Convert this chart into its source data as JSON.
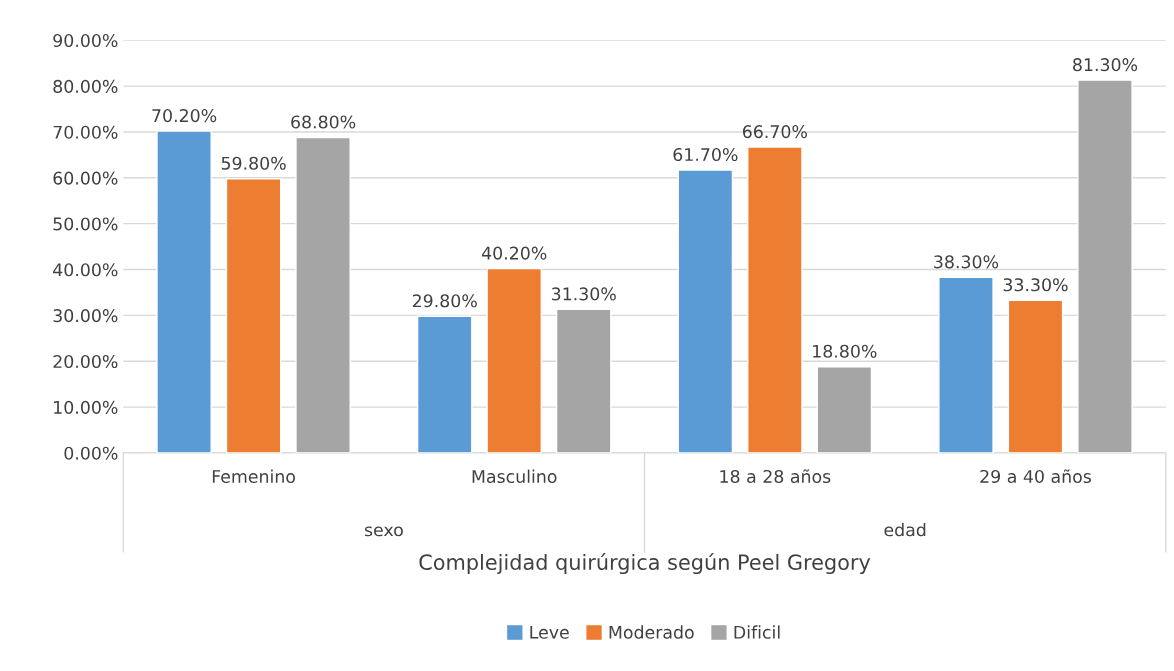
{
  "chart_data": {
    "type": "bar",
    "xlabel": "Complejidad quirúrgica según Peel Gregory",
    "categories": [
      "Femenino",
      "Masculino",
      "18 a 28 años",
      "29 a 40 años"
    ],
    "annotations": [
      "sexo",
      "edad"
    ],
    "series": [
      {
        "name": "Leve",
        "color": "#5b9bd5",
        "values": [
          70.2,
          29.8,
          61.7,
          38.3
        ],
        "value_labels": [
          "70.20%",
          "29.80%",
          "61.70%",
          "38.30%"
        ]
      },
      {
        "name": "Moderado",
        "color": "#ed7d31",
        "values": [
          59.8,
          40.2,
          66.7,
          33.3
        ],
        "value_labels": [
          "59.80%",
          "40.20%",
          "66.70%",
          "33.30%"
        ]
      },
      {
        "name": "Dificil",
        "color": "#a5a5a5",
        "values": [
          68.8,
          31.3,
          18.8,
          81.3
        ],
        "value_labels": [
          "68.80%",
          "31.30%",
          "18.80%",
          "81.30%"
        ]
      }
    ],
    "ylim": [
      0,
      90
    ],
    "yticks": [
      {
        "value": 0,
        "label": "0.00%"
      },
      {
        "value": 10,
        "label": "10.00%"
      },
      {
        "value": 20,
        "label": "20.00%"
      },
      {
        "value": 30,
        "label": "30.00%"
      },
      {
        "value": 40,
        "label": "40.00%"
      },
      {
        "value": 50,
        "label": "50.00%"
      },
      {
        "value": 60,
        "label": "60.00%"
      },
      {
        "value": 70,
        "label": "70.00%"
      },
      {
        "value": 80,
        "label": "80.00%"
      },
      {
        "value": 90,
        "label": "90.00%"
      }
    ],
    "grid": "y",
    "legend": "bottom"
  }
}
